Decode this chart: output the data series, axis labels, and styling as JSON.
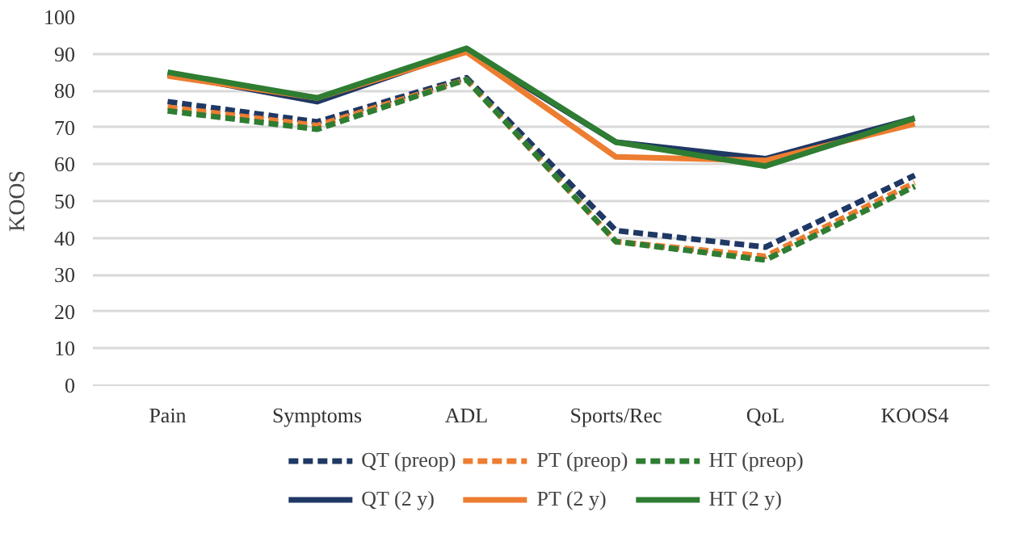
{
  "chart_data": {
    "type": "line",
    "ylabel": "KOOS",
    "categories": [
      "Pain",
      "Symptoms",
      "ADL",
      "Sports/Rec",
      "QoL",
      "KOOS4"
    ],
    "ylim": [
      0,
      100
    ],
    "yticks": [
      0,
      10,
      20,
      30,
      40,
      50,
      60,
      70,
      80,
      90,
      100
    ],
    "grid": "y",
    "legend": "bottom",
    "marker": "none",
    "series": [
      {
        "name": "QT (preop)",
        "color": "#1f3864",
        "line_style": "dashed",
        "values": [
          77,
          71.5,
          83.5,
          42,
          37.5,
          57
        ]
      },
      {
        "name": "PT (preop)",
        "color": "#ed7d31",
        "line_style": "dashed",
        "values": [
          75.5,
          70.5,
          83,
          39,
          35,
          55
        ]
      },
      {
        "name": "HT (preop)",
        "color": "#2e7d32",
        "line_style": "dashed",
        "values": [
          74.5,
          69.5,
          83,
          39,
          34,
          54
        ]
      },
      {
        "name": "QT (2 y)",
        "color": "#1f3864",
        "line_style": "solid",
        "values": [
          84.5,
          77,
          91,
          66,
          61.5,
          72.5
        ]
      },
      {
        "name": "PT (2 y)",
        "color": "#ed7d31",
        "line_style": "solid",
        "values": [
          84,
          78,
          90.5,
          62,
          61,
          71
        ]
      },
      {
        "name": "HT (2 y)",
        "color": "#2e7d32",
        "line_style": "solid",
        "values": [
          85,
          78,
          91.5,
          66,
          59.5,
          72.5
        ]
      }
    ]
  }
}
